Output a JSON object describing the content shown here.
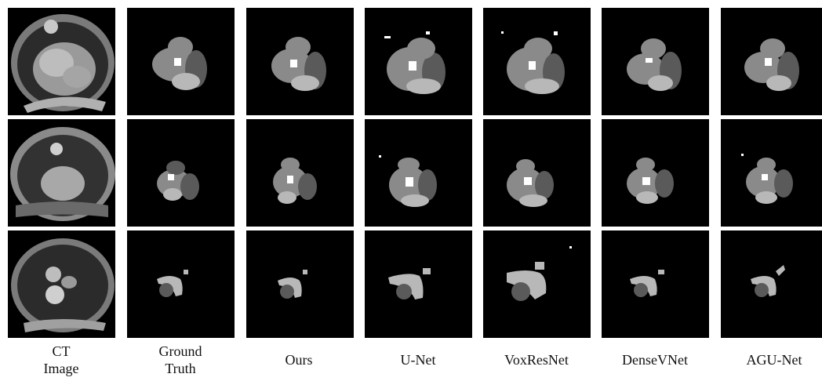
{
  "figure": {
    "columns": [
      {
        "label_lines": [
          "CT",
          "Image"
        ]
      },
      {
        "label_lines": [
          "Ground",
          "Truth"
        ]
      },
      {
        "label_lines": [
          "Ours"
        ]
      },
      {
        "label_lines": [
          "U-Net"
        ]
      },
      {
        "label_lines": [
          "VoxResNet"
        ]
      },
      {
        "label_lines": [
          "DenseVNet"
        ]
      },
      {
        "label_lines": [
          "AGU-Net"
        ]
      }
    ],
    "colors": {
      "background": "#000000",
      "class_dark": "#5a5a5a",
      "class_mid": "#8a8a8a",
      "class_light": "#b8b8b8",
      "class_white": "#ffffff"
    }
  }
}
